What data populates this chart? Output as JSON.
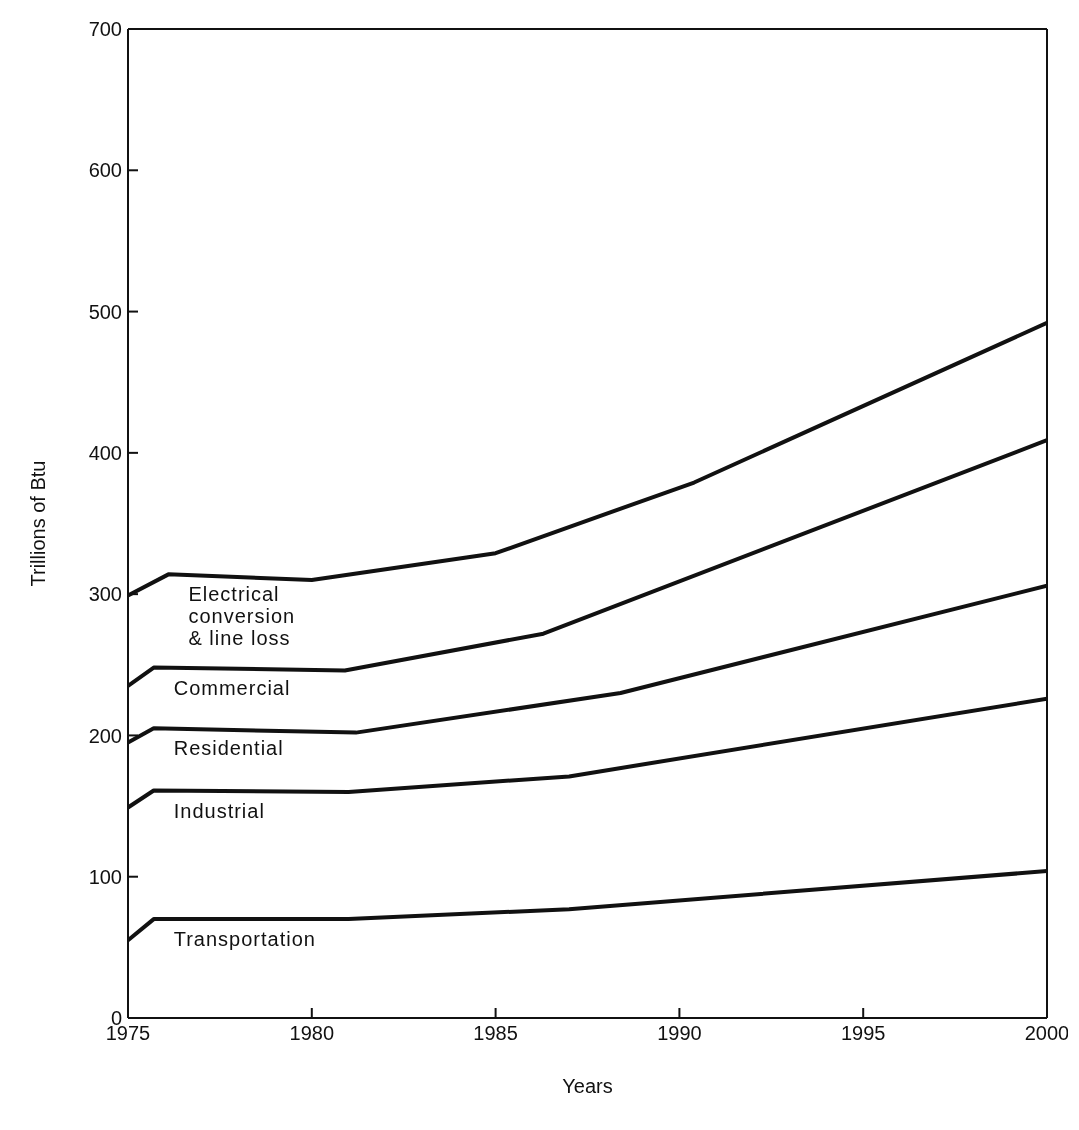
{
  "chart_data": {
    "type": "line",
    "xlabel": "Years",
    "ylabel": "Trillions of Btu",
    "xlim": [
      1975,
      2000
    ],
    "xticks": [
      1975,
      1980,
      1985,
      1990,
      1995,
      2000
    ],
    "ylim": [
      0,
      700
    ],
    "yticks": [
      0,
      100,
      200,
      300,
      400,
      500,
      600,
      700
    ],
    "marker": "none",
    "line_style": "solid",
    "series": [
      {
        "name": "Transportation",
        "color": "#111111",
        "x": [
          1975,
          1975.7,
          1981,
          1987,
          2000
        ],
        "values": [
          55,
          70,
          70,
          77,
          104
        ]
      },
      {
        "name": "Industrial",
        "color": "#111111",
        "x": [
          1975,
          1975.7,
          1981,
          1987,
          2000
        ],
        "values": [
          149,
          161,
          160,
          171,
          226
        ]
      },
      {
        "name": "Residential",
        "color": "#111111",
        "x": [
          1975,
          1975.7,
          1981.2,
          1988.4,
          2000
        ],
        "values": [
          195,
          205,
          202,
          230,
          306
        ]
      },
      {
        "name": "Commercial",
        "color": "#111111",
        "x": [
          1975,
          1975.7,
          1980.9,
          1986.3,
          2000
        ],
        "values": [
          235,
          248,
          246,
          272,
          409
        ]
      },
      {
        "name": "Electrical conversion & line loss",
        "color": "#111111",
        "x": [
          1975,
          1976.1,
          1980,
          1985,
          1990.4,
          2000
        ],
        "values": [
          299,
          314,
          310,
          329,
          379,
          492
        ]
      }
    ]
  }
}
